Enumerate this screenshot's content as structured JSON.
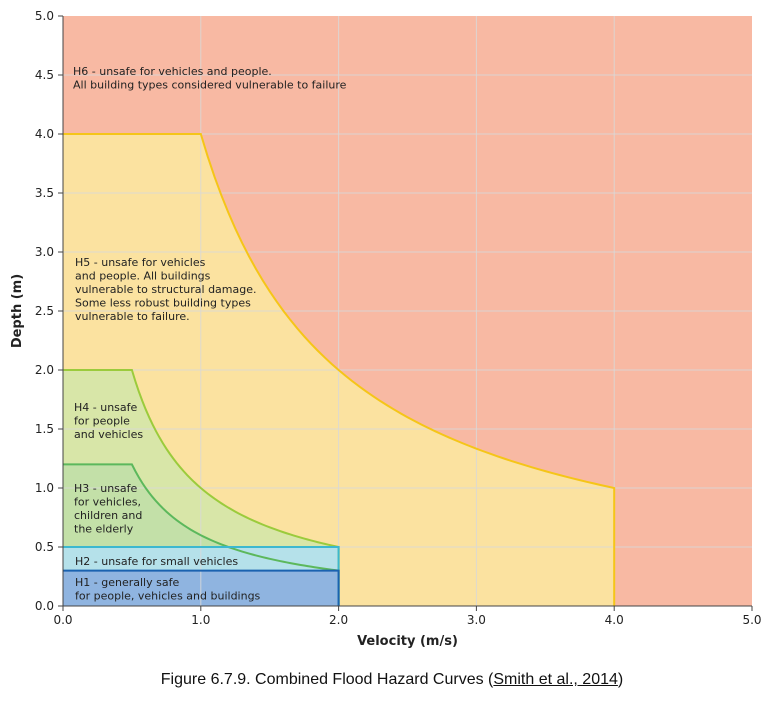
{
  "chart_data": {
    "type": "area",
    "xlabel": "Velocity (m/s)",
    "ylabel": "Depth (m)",
    "xlim": [
      0,
      5
    ],
    "ylim": [
      0,
      5
    ],
    "x_ticks": [
      "0.0",
      "1.0",
      "2.0",
      "3.0",
      "4.0",
      "5.0"
    ],
    "y_ticks": [
      "0.0",
      "0.5",
      "1.0",
      "1.5",
      "2.0",
      "2.5",
      "3.0",
      "3.5",
      "4.0",
      "4.5",
      "5.0"
    ],
    "grid": true,
    "regions": [
      {
        "id": "H6",
        "fill": "#f8b9a3",
        "stroke": "none",
        "label_lines": [
          "H6 - unsafe for vehicles and people.",
          "All building types considered vulnerable to failure"
        ]
      },
      {
        "id": "H5",
        "fill": "#fbe2a0",
        "stroke": "#f5c518",
        "boundary": {
          "max_depth": 4.0,
          "dv_product": 4.0,
          "max_velocity": 4.0
        },
        "label_lines": [
          "H5 - unsafe for vehicles",
          "and people. All buildings",
          "vulnerable to structural damage.",
          "Some less robust building types",
          "vulnerable to failure."
        ]
      },
      {
        "id": "H4",
        "fill": "#d8e6a8",
        "stroke": "#9bcb3c",
        "boundary": {
          "max_depth": 2.0,
          "dv_product": 1.0,
          "max_velocity": 2.0
        },
        "label_lines": [
          "H4 - unsafe",
          "for people",
          "and vehicles"
        ]
      },
      {
        "id": "H3",
        "fill": "#c3e0a8",
        "stroke": "#5cb85c",
        "boundary": {
          "max_depth": 1.2,
          "dv_product": 0.6,
          "max_velocity": 2.0
        },
        "label_lines": [
          "H3 - unsafe",
          "for vehicles,",
          "children and",
          "the elderly"
        ]
      },
      {
        "id": "H2",
        "fill": "#b5e1ea",
        "stroke": "#3cb8cf",
        "boundary": {
          "max_depth": 0.5,
          "dv_product": null,
          "max_velocity": 2.0
        },
        "label_lines": [
          "H2 - unsafe for small vehicles"
        ]
      },
      {
        "id": "H1",
        "fill": "#8fb4e0",
        "stroke": "#1a62b0",
        "boundary": {
          "max_depth": 0.3,
          "dv_product": null,
          "max_velocity": 2.0
        },
        "label_lines": [
          "H1 - generally safe",
          "for people, vehicles and buildings"
        ]
      }
    ]
  },
  "caption": {
    "prefix": "Figure 6.7.9. Combined Flood Hazard Curves (",
    "link_text": "Smith et al., 2014",
    "suffix": ")"
  }
}
